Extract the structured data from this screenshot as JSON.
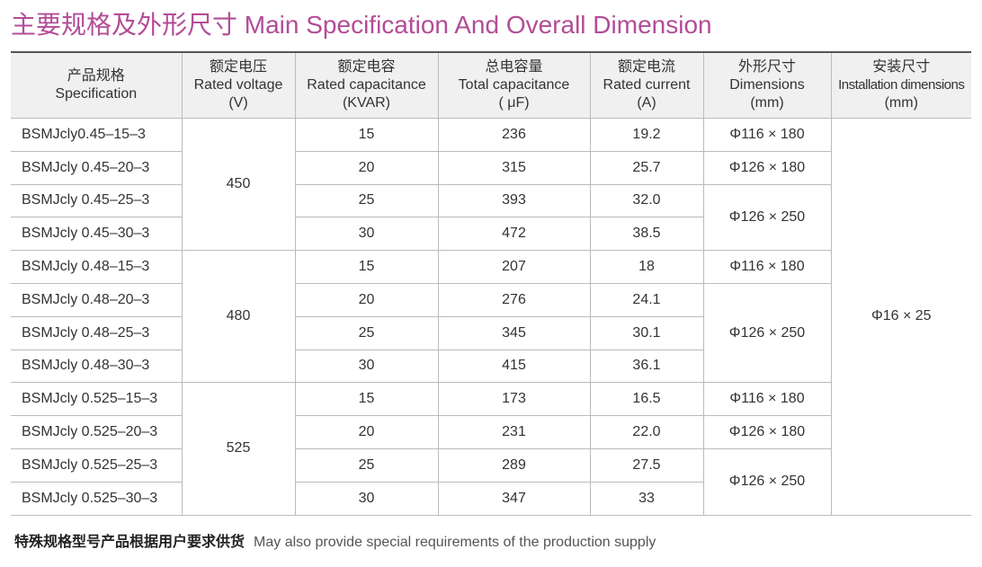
{
  "title": "主要规格及外形尺寸 Main Specification And Overall Dimension",
  "table": {
    "header": [
      [
        "产品规格",
        "Specification"
      ],
      [
        "额定电压",
        "Rated voltage",
        "(V)"
      ],
      [
        "额定电容",
        "Rated capacitance",
        "(KVAR)"
      ],
      [
        "总电容量",
        "Total capacitance",
        "( μF)"
      ],
      [
        "额定电流",
        "Rated current",
        "(A)"
      ],
      [
        "外形尺寸",
        "Dimensions",
        "(mm)"
      ],
      [
        "安装尺寸",
        "Installation dimensions",
        "(mm)"
      ]
    ],
    "rows": [
      {
        "model": "BSMJcly0.45–15–3",
        "voltage": "450",
        "capacity": "15",
        "total": "236",
        "current": "19.2",
        "dimension": "Φ116 × 180",
        "installation": "Φ16 × 25"
      },
      {
        "model": "BSMJcly 0.45–20–3",
        "capacity": "20",
        "total": "315",
        "current": "25.7",
        "dimension": "Φ126 × 180"
      },
      {
        "model": "BSMJcly 0.45–25–3",
        "capacity": "25",
        "total": "393",
        "current": "32.0",
        "dimension": "Φ126 × 250"
      },
      {
        "model": "BSMJcly 0.45–30–3",
        "capacity": "30",
        "total": "472",
        "current": "38.5"
      },
      {
        "model": "BSMJcly 0.48–15–3",
        "voltage": "480",
        "capacity": "15",
        "total": "207",
        "current": "18",
        "dimension": "Φ116 × 180"
      },
      {
        "model": "BSMJcly 0.48–20–3",
        "capacity": "20",
        "total": "276",
        "current": "24.1",
        "dimension": "Φ126 × 250"
      },
      {
        "model": "BSMJcly 0.48–25–3",
        "capacity": "25",
        "total": "345",
        "current": "30.1"
      },
      {
        "model": "BSMJcly 0.48–30–3",
        "capacity": "30",
        "total": "415",
        "current": "36.1"
      },
      {
        "model": "BSMJcly 0.525–15–3",
        "voltage": "525",
        "capacity": "15",
        "total": "173",
        "current": "16.5",
        "dimension": "Φ116 × 180"
      },
      {
        "model": "BSMJcly 0.525–20–3",
        "capacity": "20",
        "total": "231",
        "current": "22.0",
        "dimension": "Φ126 × 180"
      },
      {
        "model": "BSMJcly 0.525–25–3",
        "capacity": "25",
        "total": "289",
        "current": "27.5",
        "dimension": "Φ126 × 250"
      },
      {
        "model": "BSMJcly 0.525–30–3",
        "capacity": "30",
        "total": "347",
        "current": "33"
      }
    ]
  },
  "footer": {
    "chinese": "特殊规格型号产品根据用户要求供货",
    "english": "May also provide special requirements of the production supply"
  }
}
